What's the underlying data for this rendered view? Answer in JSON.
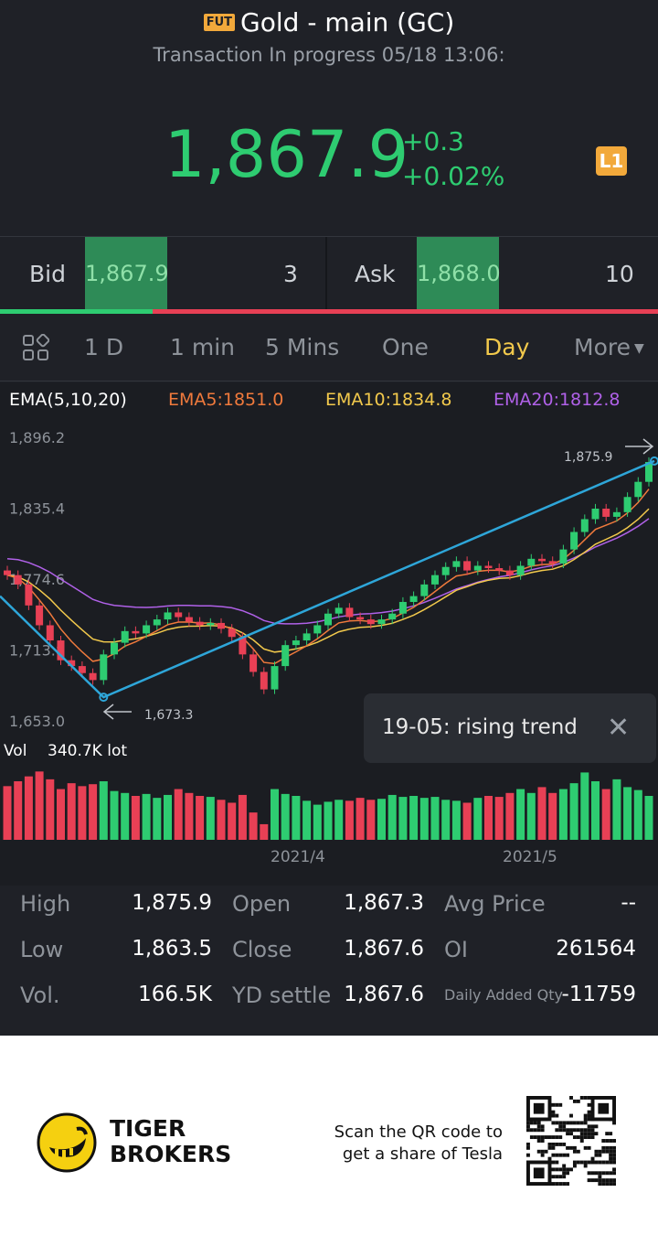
{
  "header": {
    "badge": "FUT",
    "title": "Gold - main (GC)",
    "status": "Transaction In progress 05/18 13:06:",
    "price": "1,867.9",
    "change": "+0.3",
    "change_pct": "+0.02%",
    "level_badge": "L1"
  },
  "quote": {
    "bid_label": "Bid",
    "bid_price": "1,867.9",
    "bid_qty": "3",
    "ask_label": "Ask",
    "ask_price": "1,868.0",
    "ask_qty": "10"
  },
  "tabs": [
    "1 D",
    "1 min",
    "5 Mins",
    "One",
    "Day",
    "More"
  ],
  "active_tab": "Day",
  "chart": {
    "ema_title": "EMA(5,10,20)",
    "ema5": "EMA5:1851.0",
    "ema10": "EMA10:1834.8",
    "ema20": "EMA20:1812.8",
    "y_ticks": [
      "1,896.2",
      "1,835.4",
      "1,774.6",
      "1,713.8",
      "1,653.0"
    ],
    "high_marker": "1,875.9",
    "low_marker": "1,673.3",
    "vol_label": "Vol",
    "vol_value": "340.7K lot",
    "x_ticks": [
      "2021/4",
      "2021/5"
    ],
    "tooltip": "19-05: rising trend",
    "colors": {
      "up": "#2ecc71",
      "down": "#e84055",
      "ema5": "#f07a3c",
      "ema10": "#f2c94c",
      "ema20": "#b061e8",
      "trend": "#2ea6d9"
    }
  },
  "chart_data": {
    "type": "candlestick",
    "y_range": [
      1653.0,
      1896.2
    ],
    "high": 1875.9,
    "low": 1673.3,
    "x_labels": [
      "2021/4",
      "2021/5"
    ],
    "closes": [
      1778,
      1770,
      1752,
      1735,
      1722,
      1705,
      1700,
      1694,
      1688,
      1710,
      1720,
      1730,
      1728,
      1735,
      1740,
      1746,
      1742,
      1738,
      1735,
      1737,
      1732,
      1725,
      1710,
      1695,
      1680,
      1700,
      1718,
      1722,
      1728,
      1735,
      1745,
      1750,
      1742,
      1740,
      1736,
      1740,
      1745,
      1755,
      1760,
      1770,
      1778,
      1785,
      1790,
      1782,
      1786,
      1784,
      1782,
      1778,
      1786,
      1792,
      1790,
      1788,
      1800,
      1815,
      1826,
      1835,
      1828,
      1832,
      1845,
      1858,
      1875
    ],
    "volumes": [
      55,
      60,
      65,
      70,
      62,
      52,
      58,
      55,
      57,
      60,
      50,
      48,
      45,
      47,
      43,
      46,
      52,
      48,
      45,
      44,
      41,
      38,
      46,
      28,
      16,
      52,
      47,
      45,
      40,
      36,
      39,
      41,
      40,
      43,
      41,
      42,
      46,
      44,
      45,
      43,
      44,
      41,
      40,
      38,
      43,
      45,
      44,
      48,
      52,
      48,
      54,
      48,
      52,
      58,
      69,
      60,
      52,
      62,
      54,
      51,
      45
    ]
  },
  "stats": {
    "high_label": "High",
    "high": "1,875.9",
    "low_label": "Low",
    "low": "1,863.5",
    "vol_label": "Vol.",
    "vol": "166.5K",
    "open_label": "Open",
    "open": "1,867.3",
    "close_label": "Close",
    "close": "1,867.6",
    "yd_label": "YD settle",
    "yd": "1,867.6",
    "avg_label": "Avg Price",
    "avg": "--",
    "oi_label": "OI",
    "oi": "261564",
    "daq_label": "Daily Added Qty",
    "daq": "-11759"
  },
  "footer": {
    "brand_line1": "TIGER",
    "brand_line2": "BROKERS",
    "scan_line1": "Scan the QR code to",
    "scan_line2": "get a share of Tesla"
  }
}
